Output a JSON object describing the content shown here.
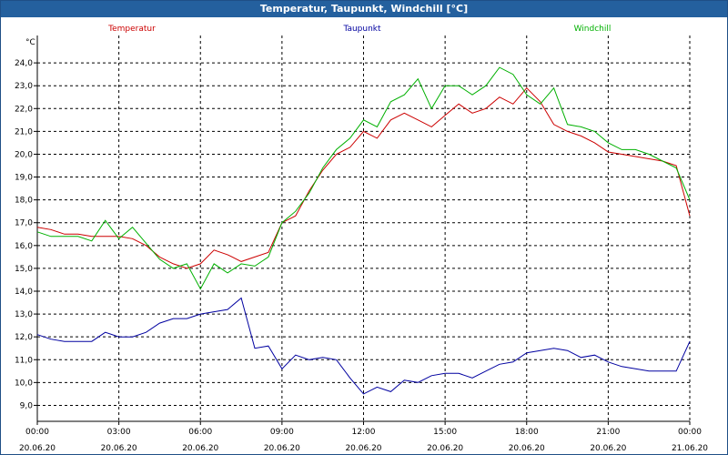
{
  "window": {
    "title": "Temperatur, Taupunkt, Windchill [°C]"
  },
  "chart_data": {
    "type": "line",
    "title": "Temperatur, Taupunkt, Windchill [°C]",
    "ylabel": "°C",
    "ylim": [
      8.3,
      25.2
    ],
    "xlim": [
      0,
      24
    ],
    "grid": true,
    "legend_placement": "top",
    "y_ticks": [
      "9,0",
      "10,0",
      "11,0",
      "12,0",
      "13,0",
      "14,0",
      "15,0",
      "16,0",
      "17,0",
      "18,0",
      "19,0",
      "20,0",
      "21,0",
      "22,0",
      "23,0",
      "24,0"
    ],
    "x_ticks": [
      {
        "time": "00:00",
        "date": "20.06.20"
      },
      {
        "time": "03:00",
        "date": "20.06.20"
      },
      {
        "time": "06:00",
        "date": "20.06.20"
      },
      {
        "time": "09:00",
        "date": "20.06.20"
      },
      {
        "time": "12:00",
        "date": "20.06.20"
      },
      {
        "time": "15:00",
        "date": "20.06.20"
      },
      {
        "time": "18:00",
        "date": "20.06.20"
      },
      {
        "time": "21:00",
        "date": "20.06.20"
      },
      {
        "time": "00:00",
        "date": "21.06.20"
      }
    ],
    "x_unit": "hours since 00:00 20.06.20",
    "series": [
      {
        "name": "Temperatur",
        "color": "#cc0000",
        "x": [
          0,
          0.5,
          1,
          1.5,
          2,
          2.5,
          3,
          3.5,
          4,
          4.5,
          5,
          5.5,
          6,
          6.5,
          7,
          7.5,
          8,
          8.5,
          9,
          9.5,
          10,
          10.5,
          11,
          11.5,
          12,
          12.5,
          13,
          13.5,
          14,
          14.5,
          15,
          15.5,
          16,
          16.5,
          17,
          17.5,
          18,
          18.5,
          19,
          19.5,
          20,
          20.5,
          21,
          21.5,
          22,
          22.5,
          23,
          23.5,
          24
        ],
        "y": [
          16.8,
          16.7,
          16.5,
          16.5,
          16.4,
          16.4,
          16.4,
          16.3,
          16.0,
          15.5,
          15.2,
          15.0,
          15.2,
          15.8,
          15.6,
          15.3,
          15.5,
          15.7,
          17.0,
          17.3,
          18.4,
          19.3,
          20.0,
          20.3,
          21.0,
          20.7,
          21.5,
          21.8,
          21.5,
          21.2,
          21.7,
          22.2,
          21.8,
          22.0,
          22.5,
          22.2,
          22.9,
          22.3,
          21.3,
          21.0,
          20.8,
          20.5,
          20.1,
          20.0,
          19.9,
          19.8,
          19.7,
          19.5,
          17.3
        ]
      },
      {
        "name": "Taupunkt",
        "color": "#0000a0",
        "x": [
          0,
          0.5,
          1,
          1.5,
          2,
          2.5,
          3,
          3.5,
          4,
          4.5,
          5,
          5.5,
          6,
          6.5,
          7,
          7.5,
          8,
          8.5,
          9,
          9.5,
          10,
          10.5,
          11,
          11.5,
          12,
          12.5,
          13,
          13.5,
          14,
          14.5,
          15,
          15.5,
          16,
          16.5,
          17,
          17.5,
          18,
          18.5,
          19,
          19.5,
          20,
          20.5,
          21,
          21.5,
          22,
          22.5,
          23,
          23.5,
          24
        ],
        "y": [
          12.1,
          11.9,
          11.8,
          11.8,
          11.8,
          12.2,
          12.0,
          12.0,
          12.2,
          12.6,
          12.8,
          12.8,
          13.0,
          13.1,
          13.2,
          13.7,
          11.5,
          11.6,
          10.6,
          11.2,
          11.0,
          11.1,
          11.0,
          10.2,
          9.5,
          9.8,
          9.6,
          10.1,
          10.0,
          10.3,
          10.4,
          10.4,
          10.2,
          10.5,
          10.8,
          10.9,
          11.3,
          11.4,
          11.5,
          11.4,
          11.1,
          11.2,
          10.9,
          10.7,
          10.6,
          10.5,
          10.5,
          10.5,
          11.8
        ]
      },
      {
        "name": "Windchill",
        "color": "#00b000",
        "x": [
          0,
          0.5,
          1,
          1.5,
          2,
          2.5,
          3,
          3.5,
          4,
          4.5,
          5,
          5.5,
          6,
          6.5,
          7,
          7.5,
          8,
          8.5,
          9,
          9.5,
          10,
          10.5,
          11,
          11.5,
          12,
          12.5,
          13,
          13.5,
          14,
          14.5,
          15,
          15.5,
          16,
          16.5,
          17,
          17.5,
          18,
          18.5,
          19,
          19.5,
          20,
          20.5,
          21,
          21.5,
          22,
          22.5,
          23,
          23.5,
          24
        ],
        "y": [
          16.6,
          16.4,
          16.4,
          16.4,
          16.2,
          17.1,
          16.3,
          16.8,
          16.1,
          15.4,
          15.0,
          15.2,
          14.1,
          15.2,
          14.8,
          15.2,
          15.1,
          15.5,
          17.0,
          17.5,
          18.3,
          19.4,
          20.2,
          20.7,
          21.5,
          21.2,
          22.3,
          22.6,
          23.3,
          22.0,
          23.0,
          23.0,
          22.6,
          23.0,
          23.8,
          23.5,
          22.6,
          22.2,
          22.9,
          21.3,
          21.2,
          21.0,
          20.5,
          20.2,
          20.2,
          20.0,
          19.7,
          19.4,
          18.0
        ]
      }
    ]
  }
}
